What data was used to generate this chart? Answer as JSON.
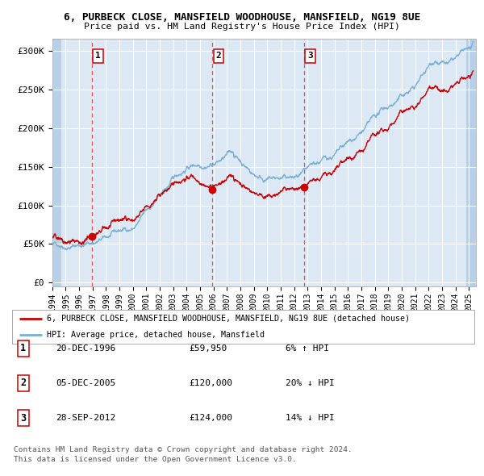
{
  "title1": "6, PURBECK CLOSE, MANSFIELD WOODHOUSE, MANSFIELD, NG19 8UE",
  "title2": "Price paid vs. HM Land Registry's House Price Index (HPI)",
  "bg_color": "#dce9f5",
  "hatch_color": "#b8cfe8",
  "grid_color": "#ffffff",
  "red_line_color": "#cc0000",
  "blue_line_color": "#7bafd4",
  "sale_marker_color": "#cc0000",
  "dashed_line_color": "#ff4444",
  "ylabel_values": [
    0,
    50000,
    100000,
    150000,
    200000,
    250000,
    300000
  ],
  "ylabel_labels": [
    "£0",
    "£50K",
    "£100K",
    "£150K",
    "£200K",
    "£250K",
    "£300K"
  ],
  "xmin": 1994.0,
  "xmax": 2025.5,
  "ymin": -5000,
  "ymax": 315000,
  "sales": [
    {
      "label": "1",
      "date_num": 1996.97,
      "price": 59950
    },
    {
      "label": "2",
      "date_num": 2005.92,
      "price": 120000
    },
    {
      "label": "3",
      "date_num": 2012.74,
      "price": 124000
    }
  ],
  "legend_red": "6, PURBECK CLOSE, MANSFIELD WOODHOUSE, MANSFIELD, NG19 8UE (detached house)",
  "legend_blue": "HPI: Average price, detached house, Mansfield",
  "table_rows": [
    {
      "num": "1",
      "date": "20-DEC-1996",
      "price": "£59,950",
      "change": "6% ↑ HPI"
    },
    {
      "num": "2",
      "date": "05-DEC-2005",
      "price": "£120,000",
      "change": "20% ↓ HPI"
    },
    {
      "num": "3",
      "date": "28-SEP-2012",
      "price": "£124,000",
      "change": "14% ↓ HPI"
    }
  ],
  "footnote1": "Contains HM Land Registry data © Crown copyright and database right 2024.",
  "footnote2": "This data is licensed under the Open Government Licence v3.0."
}
